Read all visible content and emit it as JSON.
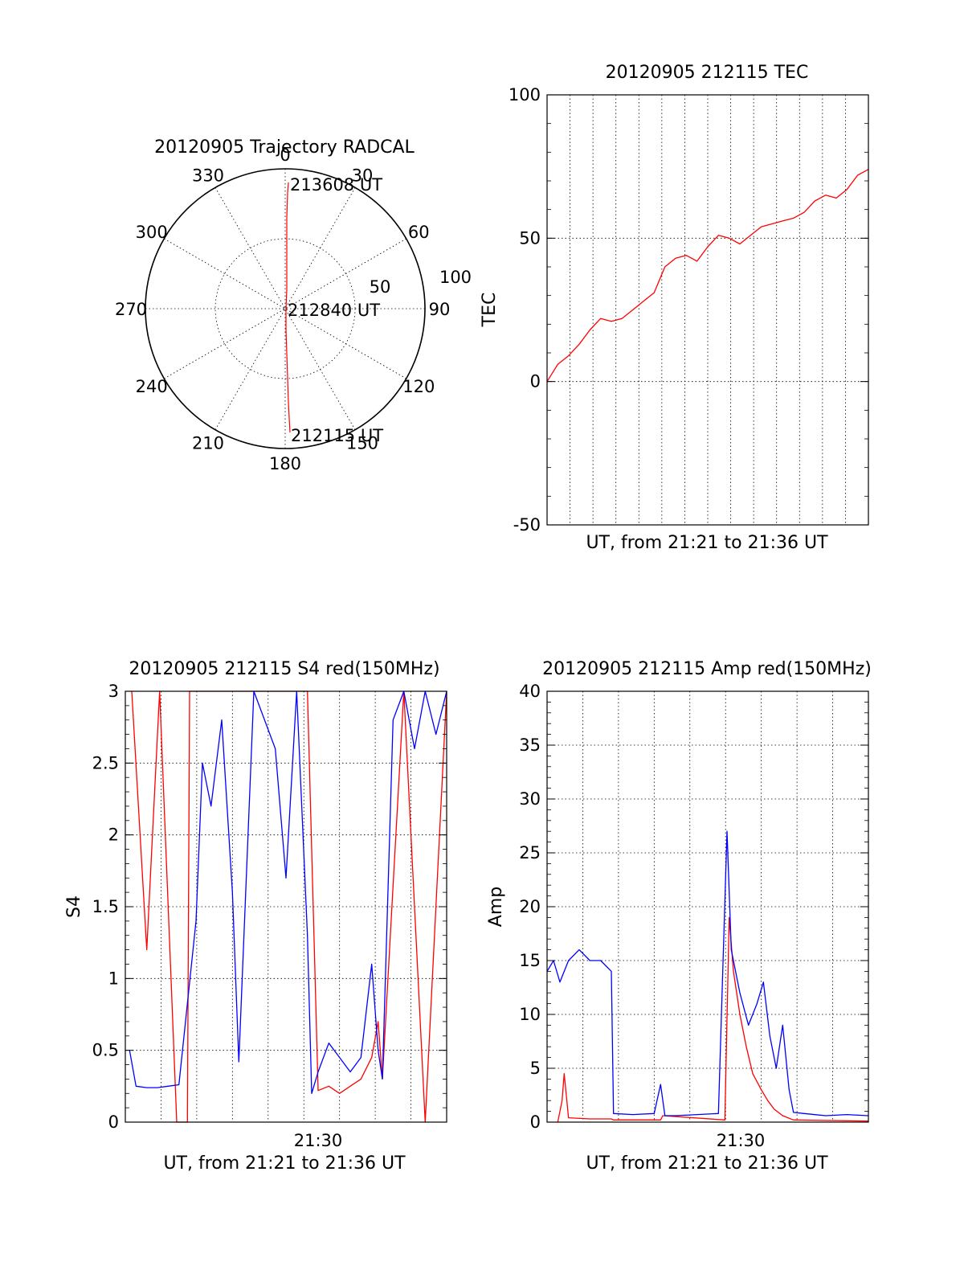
{
  "polar": {
    "title": "20120905 Trajectory RADCAL",
    "angle_labels": [
      "0",
      "30",
      "60",
      "90",
      "120",
      "150",
      "180",
      "210",
      "240",
      "270",
      "300",
      "330"
    ],
    "radius_labels": [
      "50",
      "100"
    ],
    "time_labels": [
      "213608 UT",
      "212840 UT",
      "212115 UT"
    ],
    "trajectory_color": "#ff0000"
  },
  "chart_data": [
    {
      "type": "line",
      "panel": "tec",
      "title": "20120905 212115 TEC",
      "xlabel": "UT, from 21:21 to 21:36 UT",
      "ylabel": "TEC",
      "ylim": [
        -50,
        100
      ],
      "yticks": [
        "100",
        "50",
        "0",
        "-50"
      ],
      "grid": true,
      "series": [
        {
          "color": "#ff0000",
          "x": [
            0,
            0.5,
            1,
            1.5,
            2,
            2.5,
            3,
            3.5,
            4,
            4.5,
            5,
            5.5,
            6,
            6.5,
            7,
            7.5,
            8,
            8.5,
            9,
            9.5,
            10,
            10.5,
            11,
            11.5,
            12,
            12.5,
            13,
            13.5,
            14,
            14.5,
            15
          ],
          "y": [
            0,
            6,
            9,
            13,
            18,
            22,
            21,
            22,
            25,
            28,
            31,
            40,
            43,
            44,
            42,
            47,
            51,
            50,
            48,
            51,
            54,
            55,
            56,
            57,
            59,
            63,
            65,
            64,
            67,
            72,
            74
          ]
        }
      ]
    },
    {
      "type": "line",
      "panel": "s4",
      "title": "20120905 212115 S4 red(150MHz)",
      "xlabel": "UT, from 21:21 to 21:36 UT",
      "ylabel": "S4",
      "ylim": [
        0,
        3
      ],
      "yticks": [
        "3",
        "2.5",
        "2",
        "1.5",
        "1",
        "0.5",
        "0"
      ],
      "xtick_label": "21:30",
      "grid": true,
      "series": [
        {
          "color": "#ff0000",
          "x": [
            0.3,
            1.0,
            1.6,
            2.4,
            2.9,
            3.0,
            8.5,
            9.0,
            9.5,
            10.0,
            10.5,
            11.0,
            11.5,
            11.8,
            12.0,
            13.0,
            14.0,
            15.0
          ],
          "y": [
            3.0,
            1.2,
            3.0,
            0.0,
            0.0,
            3.0,
            3.0,
            0.22,
            0.25,
            0.2,
            0.25,
            0.3,
            0.45,
            0.7,
            0.3,
            3.0,
            0.0,
            3.0
          ]
        },
        {
          "color": "#0000ff",
          "x": [
            0.2,
            0.5,
            1.0,
            1.5,
            2.0,
            2.5,
            3.3,
            3.6,
            4.0,
            4.5,
            5.0,
            5.3,
            6.0,
            7.0,
            7.5,
            8.0,
            8.5,
            8.7,
            9.0,
            9.5,
            10.0,
            10.5,
            11.0,
            11.5,
            11.8,
            12.0,
            12.5,
            13.0,
            13.5,
            14.0,
            14.5,
            15.0
          ],
          "y": [
            0.5,
            0.25,
            0.24,
            0.24,
            0.25,
            0.26,
            1.4,
            2.5,
            2.2,
            2.8,
            1.6,
            0.42,
            3.0,
            2.6,
            1.7,
            3.0,
            1.3,
            0.2,
            0.35,
            0.55,
            0.45,
            0.35,
            0.45,
            1.1,
            0.5,
            0.3,
            2.8,
            3.0,
            2.6,
            3.0,
            2.7,
            3.0
          ]
        }
      ]
    },
    {
      "type": "line",
      "panel": "amp",
      "title": "20120905 212115 Amp red(150MHz)",
      "xlabel": "UT, from 21:21 to 21:36 UT",
      "ylabel": "Amp",
      "ylim": [
        0,
        40
      ],
      "yticks": [
        "40",
        "35",
        "30",
        "25",
        "20",
        "15",
        "10",
        "5",
        "0"
      ],
      "xtick_label": "21:30",
      "grid": true,
      "series": [
        {
          "color": "#ff0000",
          "x": [
            0.5,
            0.7,
            0.8,
            1.0,
            2.0,
            3.0,
            3.1,
            5.3,
            5.4,
            8.3,
            8.5,
            8.7,
            9.0,
            9.3,
            9.6,
            10.0,
            10.3,
            10.6,
            11.0,
            11.5,
            15.0
          ],
          "y": [
            0,
            2.0,
            4.5,
            0.4,
            0.3,
            0.3,
            0.2,
            0.2,
            0.6,
            0.2,
            19.0,
            14.0,
            10.0,
            7.0,
            4.5,
            3.0,
            2.0,
            1.2,
            0.6,
            0.2,
            0.1
          ]
        },
        {
          "color": "#0000ff",
          "x": [
            0.0,
            0.3,
            0.6,
            1.0,
            1.5,
            2.0,
            2.5,
            3.0,
            3.1,
            4.0,
            5.0,
            5.3,
            5.5,
            6.0,
            7.0,
            8.0,
            8.4,
            8.6,
            9.0,
            9.4,
            9.8,
            10.1,
            10.4,
            10.7,
            11.0,
            11.3,
            11.5,
            12.0,
            13.0,
            14.0,
            15.0
          ],
          "y": [
            14,
            15,
            13,
            15,
            16,
            15,
            15,
            14,
            0.8,
            0.7,
            0.8,
            3.5,
            0.6,
            0.6,
            0.7,
            0.8,
            27.0,
            16.0,
            12.0,
            9.0,
            11.0,
            13.0,
            8.0,
            5.0,
            9.0,
            3.0,
            0.9,
            0.8,
            0.6,
            0.7,
            0.6
          ]
        }
      ]
    }
  ]
}
